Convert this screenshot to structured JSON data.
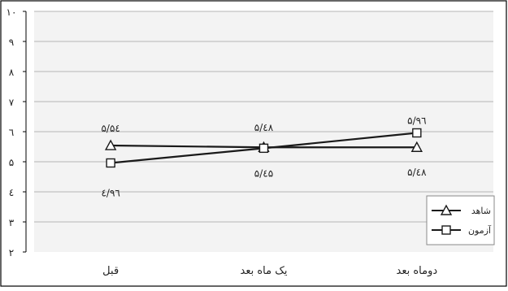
{
  "chart_data": {
    "type": "line",
    "categories": [
      "قبل",
      "یک ماه بعد",
      "دوماه بعد"
    ],
    "series": [
      {
        "name": "شاهد",
        "values": [
          5.54,
          5.48,
          5.48
        ],
        "marker": "triangle",
        "value_labels": [
          "۵/۵٤",
          "",
          "۵/٤۸"
        ]
      },
      {
        "name": "آزمون",
        "values": [
          4.96,
          5.45,
          5.96
        ],
        "marker": "square",
        "value_labels": [
          "٤/۹٦",
          "",
          "۵/۹٦"
        ]
      }
    ],
    "middle_labels": {
      "above": "۵/٤۸",
      "below": "۵/٤۵"
    },
    "y_ticks": [
      {
        "value": 2,
        "label": "۲"
      },
      {
        "value": 3,
        "label": "۳"
      },
      {
        "value": 4,
        "label": "٤"
      },
      {
        "value": 5,
        "label": "۵"
      },
      {
        "value": 6,
        "label": "٦"
      },
      {
        "value": 7,
        "label": "۷"
      },
      {
        "value": 8,
        "label": "۸"
      },
      {
        "value": 9,
        "label": "۹"
      },
      {
        "value": 10,
        "label": "۱۰"
      }
    ],
    "ylim": [
      2,
      10
    ],
    "grid": true,
    "legend_position": "bottom-right",
    "colors": {
      "line": "#1a1a1a",
      "grid": "#b5b5b5",
      "plot_bg": "#f3f3f3",
      "frame": "#000000"
    }
  }
}
